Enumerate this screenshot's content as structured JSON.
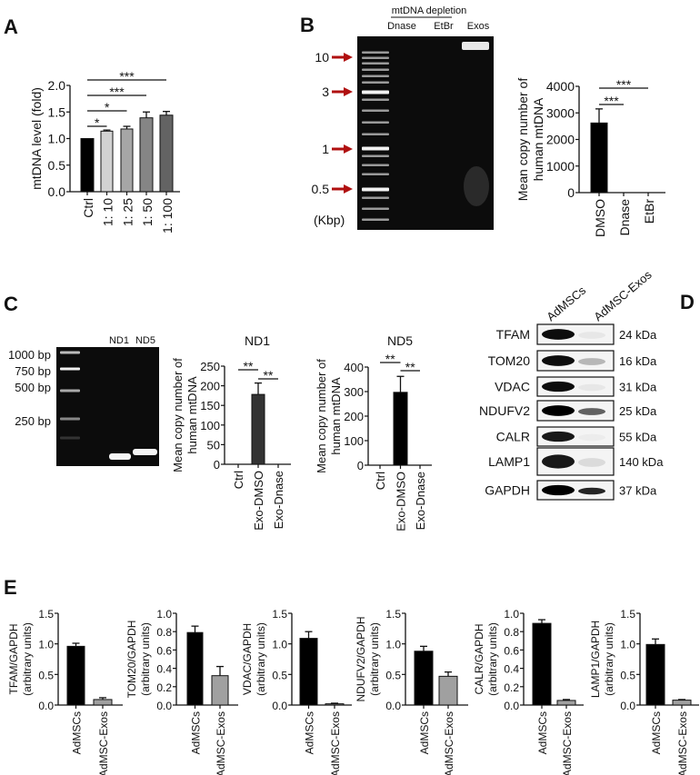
{
  "panels": {
    "A": {
      "label": "A"
    },
    "B": {
      "label": "B",
      "gel": {
        "header": "mtDNA depletion",
        "lanes": [
          "Dnase",
          "EtBr",
          "Exos"
        ],
        "markers": [
          "10",
          "3",
          "1",
          "0.5"
        ],
        "unit": "(Kbp)",
        "arrow_color": "#b01010"
      }
    },
    "C": {
      "label": "C",
      "gel": {
        "lanes": [
          "ND1",
          "ND5"
        ],
        "ladder": [
          "1000 bp",
          "750 bp",
          "500 bp",
          "250 bp"
        ]
      }
    },
    "D": {
      "label": "D",
      "blot": {
        "columns": [
          "AdMSCs",
          "AdMSC-Exos"
        ],
        "rows": [
          {
            "protein": "TFAM",
            "size": "24 kDa"
          },
          {
            "protein": "TOM20",
            "size": "16 kDa"
          },
          {
            "protein": "VDAC",
            "size": "31 kDa"
          },
          {
            "protein": "NDUFV2",
            "size": "25 kDa"
          },
          {
            "protein": "CALR",
            "size": "55 kDa"
          },
          {
            "protein": "LAMP1",
            "size": "140 kDa"
          },
          {
            "protein": "GAPDH",
            "size": "37 kDa"
          }
        ]
      }
    },
    "E": {
      "label": "E"
    }
  },
  "chart_data": [
    {
      "id": "A",
      "type": "bar",
      "title": "",
      "ylabel": [
        "mtDNA level (fold)"
      ],
      "ylim": [
        0,
        2.0
      ],
      "yticks": [
        "0.0",
        "0.5",
        "1.0",
        "1.5",
        "2.0"
      ],
      "categories": [
        "Ctrl",
        "1: 10",
        "1: 25",
        "1: 50",
        "1: 100"
      ],
      "values": [
        1.0,
        1.14,
        1.18,
        1.39,
        1.44
      ],
      "errors": [
        0,
        0.02,
        0.05,
        0.11,
        0.07
      ],
      "colors": [
        "#000000",
        "#d2d2d2",
        "#a6a6a6",
        "#858585",
        "#636363"
      ],
      "significance": [
        {
          "groups": [
            0,
            1
          ],
          "label": "*"
        },
        {
          "groups": [
            0,
            2
          ],
          "label": "*"
        },
        {
          "groups": [
            0,
            3
          ],
          "label": "***"
        },
        {
          "groups": [
            0,
            4
          ],
          "label": "***"
        }
      ]
    },
    {
      "id": "B",
      "type": "bar",
      "title": "",
      "ylabel": [
        "Mean copy number of",
        "human mtDNA"
      ],
      "ylim": [
        0,
        4000
      ],
      "yticks": [
        "0",
        "1000",
        "2000",
        "3000",
        "4000"
      ],
      "categories": [
        "DMSO",
        "Dnase",
        "EtBr"
      ],
      "values": [
        2620,
        0,
        0
      ],
      "errors": [
        530,
        0,
        0
      ],
      "colors": [
        "#000000",
        "#000000",
        "#000000"
      ],
      "significance": [
        {
          "groups": [
            0,
            1
          ],
          "label": "***"
        },
        {
          "groups": [
            0,
            2
          ],
          "label": "***"
        }
      ]
    },
    {
      "id": "ND1",
      "type": "bar",
      "title": "ND1",
      "ylabel": [
        "Mean copy number of",
        "human mtDNA"
      ],
      "ylim": [
        0,
        250
      ],
      "yticks": [
        "0",
        "50",
        "100",
        "150",
        "200",
        "250"
      ],
      "categories": [
        "Ctrl",
        "Exo-DMSO",
        "Exo-Dnase"
      ],
      "values": [
        0,
        178,
        0
      ],
      "errors": [
        0,
        29,
        0
      ],
      "colors": [
        "#333333",
        "#333333",
        "#333333"
      ],
      "significance": [
        {
          "groups": [
            0,
            1
          ],
          "label": "**"
        },
        {
          "groups": [
            1,
            2
          ],
          "label": "**"
        }
      ]
    },
    {
      "id": "ND5",
      "type": "bar",
      "title": "ND5",
      "ylabel": [
        "Mean copy number of",
        "human mtDNA"
      ],
      "ylim": [
        0,
        400
      ],
      "yticks": [
        "0",
        "100",
        "200",
        "300",
        "400"
      ],
      "categories": [
        "Ctrl",
        "Exo-DMSO",
        "Exo-Dnase"
      ],
      "values": [
        0,
        297,
        0
      ],
      "errors": [
        0,
        65,
        0
      ],
      "colors": [
        "#000000",
        "#000000",
        "#000000"
      ],
      "significance": [
        {
          "groups": [
            0,
            1
          ],
          "label": "**"
        },
        {
          "groups": [
            1,
            2
          ],
          "label": "**"
        }
      ]
    },
    {
      "id": "TFAM",
      "type": "bar",
      "title": "",
      "ylabel": [
        "TFAM/GAPDH",
        "(arbitrary units)"
      ],
      "ylim": [
        0,
        1.5
      ],
      "yticks": [
        "0.0",
        "0.5",
        "1.0",
        "1.5"
      ],
      "categories": [
        "AdMSCs",
        "AdMSC-Exos"
      ],
      "values": [
        0.96,
        0.09
      ],
      "errors": [
        0.05,
        0.03
      ],
      "colors": [
        "#000000",
        "#a0a0a0"
      ],
      "significance": []
    },
    {
      "id": "TOM20",
      "type": "bar",
      "title": "",
      "ylabel": [
        "TOM20/GAPDH",
        "(arbitrary units)"
      ],
      "ylim": [
        0,
        1.0
      ],
      "yticks": [
        "0.0",
        "0.2",
        "0.4",
        "0.6",
        "0.8",
        "1.0"
      ],
      "categories": [
        "AdMSCs",
        "AdMSC-Exos"
      ],
      "values": [
        0.79,
        0.32
      ],
      "errors": [
        0.07,
        0.1
      ],
      "colors": [
        "#000000",
        "#a0a0a0"
      ],
      "significance": []
    },
    {
      "id": "VDAC",
      "type": "bar",
      "title": "",
      "ylabel": [
        "VDAC/GAPDH",
        "(arbitrary units)"
      ],
      "ylim": [
        0,
        1.5
      ],
      "yticks": [
        "0.0",
        "0.5",
        "1.0",
        "1.5"
      ],
      "categories": [
        "AdMSCs",
        "AdMSC-Exos"
      ],
      "values": [
        1.09,
        0.02
      ],
      "errors": [
        0.11,
        0.01
      ],
      "colors": [
        "#000000",
        "#a0a0a0"
      ],
      "significance": []
    },
    {
      "id": "NDUFV2",
      "type": "bar",
      "title": "",
      "ylabel": [
        "NDUFV2/GAPDH",
        "(arbitrary units)"
      ],
      "ylim": [
        0,
        1.5
      ],
      "yticks": [
        "0.0",
        "0.5",
        "1.0",
        "1.5"
      ],
      "categories": [
        "AdMSCs",
        "AdMSC-Exos"
      ],
      "values": [
        0.88,
        0.47
      ],
      "errors": [
        0.08,
        0.07
      ],
      "colors": [
        "#000000",
        "#a0a0a0"
      ],
      "significance": []
    },
    {
      "id": "CALR",
      "type": "bar",
      "title": "",
      "ylabel": [
        "CALR/GAPDH",
        "(arbitrary units)"
      ],
      "ylim": [
        0,
        1.0
      ],
      "yticks": [
        "0.0",
        "0.2",
        "0.4",
        "0.6",
        "0.8",
        "1.0"
      ],
      "categories": [
        "AdMSCs",
        "AdMSC-Exos"
      ],
      "values": [
        0.89,
        0.05
      ],
      "errors": [
        0.04,
        0.01
      ],
      "colors": [
        "#000000",
        "#a0a0a0"
      ],
      "significance": []
    },
    {
      "id": "LAMP1",
      "type": "bar",
      "title": "",
      "ylabel": [
        "LAMP1/GAPDH",
        "(arbitrary units)"
      ],
      "ylim": [
        0,
        1.5
      ],
      "yticks": [
        "0.0",
        "0.5",
        "1.0",
        "1.5"
      ],
      "categories": [
        "AdMSCs",
        "AdMSC-Exos"
      ],
      "values": [
        0.99,
        0.08
      ],
      "errors": [
        0.09,
        0.01
      ],
      "colors": [
        "#000000",
        "#a0a0a0"
      ],
      "significance": []
    }
  ]
}
